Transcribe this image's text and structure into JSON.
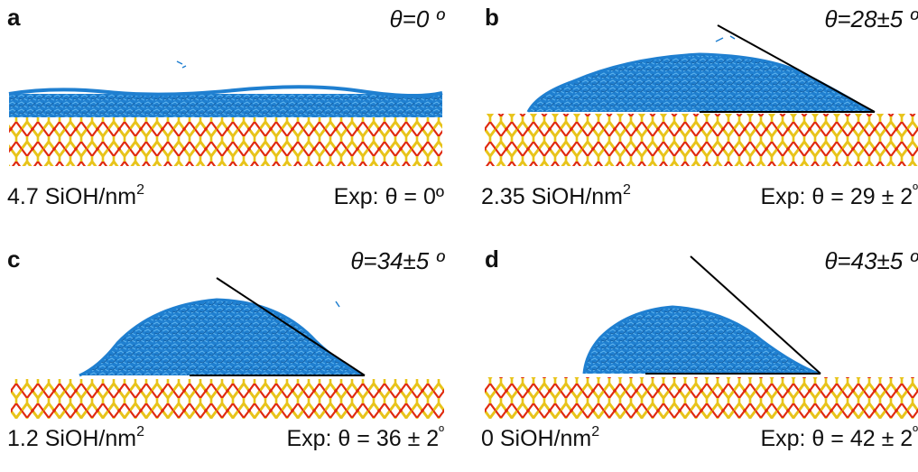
{
  "panels": [
    {
      "letter": "a",
      "theta": "θ=0 º",
      "density": "4.7 SiOH/nm",
      "density_exp": "2",
      "exp": "Exp: θ = 0º",
      "exp_tail": ""
    },
    {
      "letter": "b",
      "theta": "θ=28±5 º",
      "density": "2.35 SiOH/nm",
      "density_exp": "2",
      "exp": "Exp: θ = 29 ± 2",
      "exp_tail": "º"
    },
    {
      "letter": "c",
      "theta": "θ=34±5 º",
      "density": "1.2 SiOH/nm",
      "density_exp": "2",
      "exp": "Exp: θ = 36 ± 2",
      "exp_tail": "º"
    },
    {
      "letter": "d",
      "theta": "θ=43±5 º",
      "density": "0 SiOH/nm",
      "density_exp": "2",
      "exp": "Exp: θ = 42 ± 2",
      "exp_tail": "º"
    }
  ],
  "colors": {
    "water": "#1f7fd0",
    "water_light": "#4aa6e8",
    "silica_si": "#e8c41a",
    "silica_o": "#e02a10",
    "tangent": "#000000"
  }
}
